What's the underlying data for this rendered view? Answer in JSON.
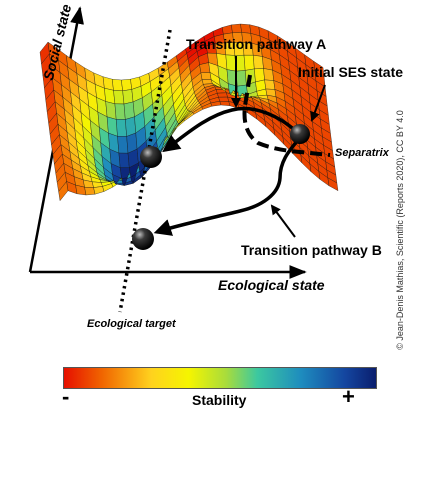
{
  "labels": {
    "pathway_a": "Transition pathway A",
    "pathway_b": "Transition pathway B",
    "initial_state": "Initial SES state",
    "separatrix": "Separatrix",
    "social_axis": "Social state",
    "ecological_axis": "Ecological state",
    "ecological_target": "Ecological target"
  },
  "colorbar": {
    "title": "Stability",
    "min_symbol": "-",
    "max_symbol": "+",
    "colors": [
      "#e60f00",
      "#f06400",
      "#ffd21e",
      "#f5f500",
      "#a8dc3c",
      "#3cc8a0",
      "#1e8cbe",
      "#1446a0",
      "#0a1e6e"
    ]
  },
  "credit": "© Jean-Denis Mathias, Scientific (Reports 2020), CC BY 4.0"
}
